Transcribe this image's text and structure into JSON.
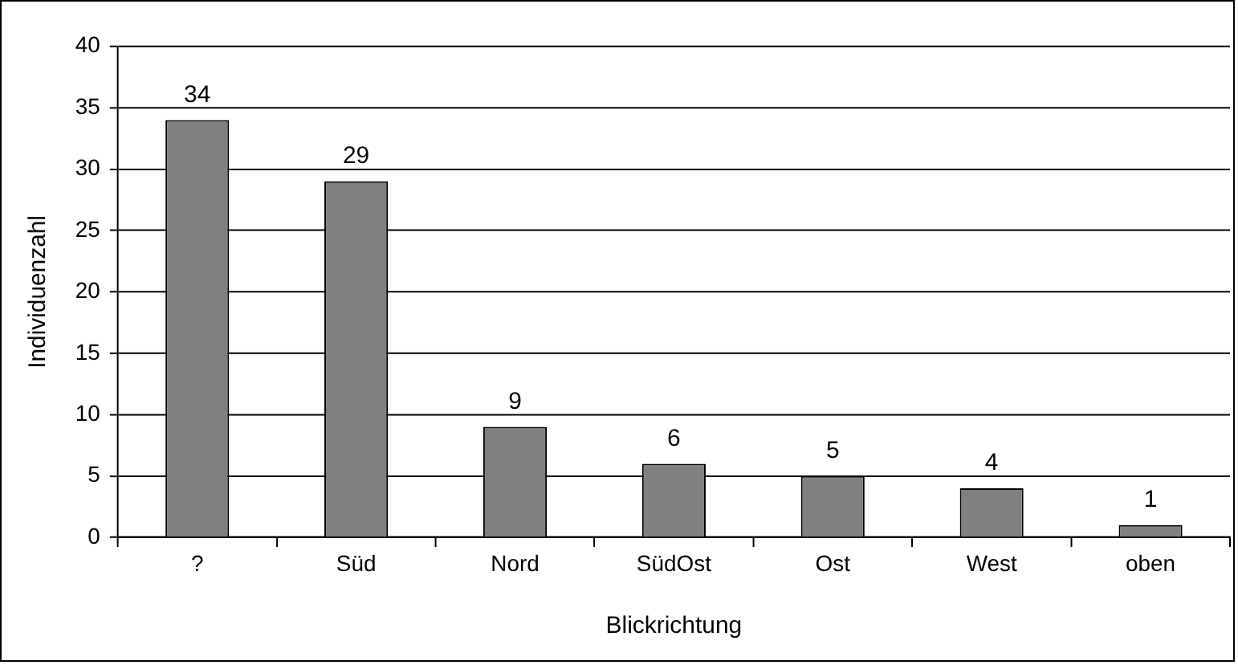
{
  "chart_data": {
    "type": "bar",
    "xlabel": "Blickrichtung",
    "ylabel": "Individuenzahl",
    "categories": [
      "?",
      "Süd",
      "Nord",
      "SüdOst",
      "Ost",
      "West",
      "oben"
    ],
    "values": [
      34,
      29,
      9,
      6,
      5,
      4,
      1
    ],
    "color": "#808080",
    "ylim": [
      0,
      40
    ],
    "yticks": [
      0,
      5,
      10,
      15,
      20,
      25,
      30,
      35,
      40
    ],
    "grid": "y",
    "data_labels": true
  }
}
